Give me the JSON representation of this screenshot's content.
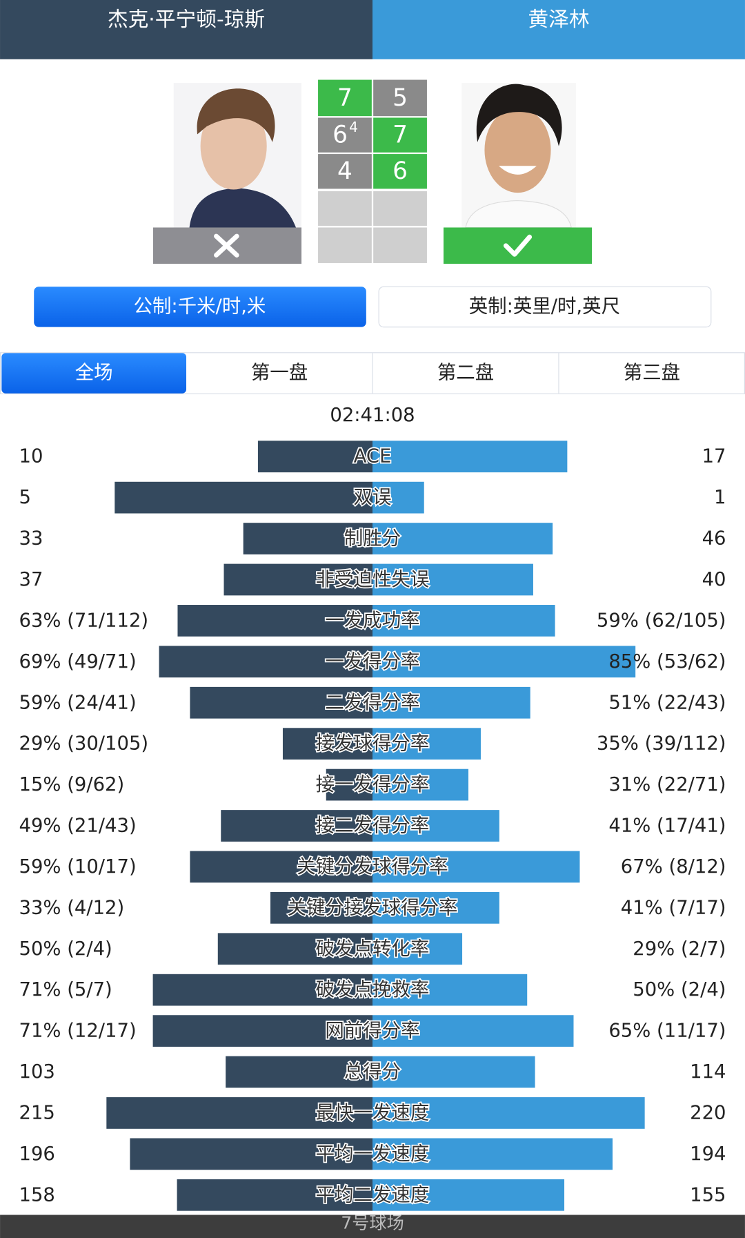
{
  "header": {
    "left_player": "杰克·平宁顿-琼斯",
    "right_player": "黄泽林"
  },
  "score": {
    "sets": [
      {
        "left": "7",
        "right": "5"
      },
      {
        "left": "6",
        "left_tiebreak": "4",
        "right": "7"
      },
      {
        "left": "4",
        "right": "6"
      }
    ]
  },
  "units": [
    "公制:千米/时,米",
    "英制:英里/时,英尺"
  ],
  "tabs": [
    "全场",
    "第一盘",
    "第二盘",
    "第三盘"
  ],
  "duration": "02:41:08",
  "stats": [
    {
      "label": "ACE",
      "left": 10,
      "right": 17
    },
    {
      "label": "双误",
      "left": 5,
      "right": 1
    },
    {
      "label": "制胜分",
      "left": 33,
      "right": 46
    },
    {
      "label": "非受迫性失误",
      "left": 37,
      "right": 40
    },
    {
      "label": "一发成功率",
      "left": 63,
      "left_label": "63% (71/112)",
      "right": 59,
      "right_label": "59% (62/105)"
    },
    {
      "label": "一发得分率",
      "left": 69,
      "left_label": "69% (49/71)",
      "right": 85,
      "right_label": "85% (53/62)"
    },
    {
      "label": "二发得分率",
      "left": 59,
      "left_label": "59% (24/41)",
      "right": 51,
      "right_label": "51% (22/43)"
    },
    {
      "label": "接发球得分率",
      "left": 29,
      "left_label": "29% (30/105)",
      "right": 35,
      "right_label": "35% (39/112)"
    },
    {
      "label": "接一发得分率",
      "left": 15,
      "left_label": "15% (9/62)",
      "right": 31,
      "right_label": "31% (22/71)"
    },
    {
      "label": "接二发得分率",
      "left": 49,
      "left_label": "49% (21/43)",
      "right": 41,
      "right_label": "41% (17/41)"
    },
    {
      "label": "关键分发球得分率",
      "left": 59,
      "left_label": "59% (10/17)",
      "right": 67,
      "right_label": "67% (8/12)"
    },
    {
      "label": "关键分接发球得分率",
      "left": 33,
      "left_label": "33% (4/12)",
      "right": 41,
      "right_label": "41% (7/17)"
    },
    {
      "label": "破发点转化率",
      "left": 50,
      "left_label": "50% (2/4)",
      "right": 29,
      "right_label": "29% (2/7)"
    },
    {
      "label": "破发点挽救率",
      "left": 71,
      "left_label": "71% (5/7)",
      "right": 50,
      "right_label": "50% (2/4)"
    },
    {
      "label": "网前得分率",
      "left": 71,
      "left_label": "71% (12/17)",
      "right": 65,
      "right_label": "65% (11/17)"
    },
    {
      "label": "总得分",
      "left": 103,
      "right": 114
    },
    {
      "label": "最快一发速度",
      "left": 215,
      "right": 220
    },
    {
      "label": "平均一发速度",
      "left": 196,
      "right": 194
    },
    {
      "label": "平均二发速度",
      "left": 158,
      "right": 155
    }
  ],
  "venue": "7号球场"
}
